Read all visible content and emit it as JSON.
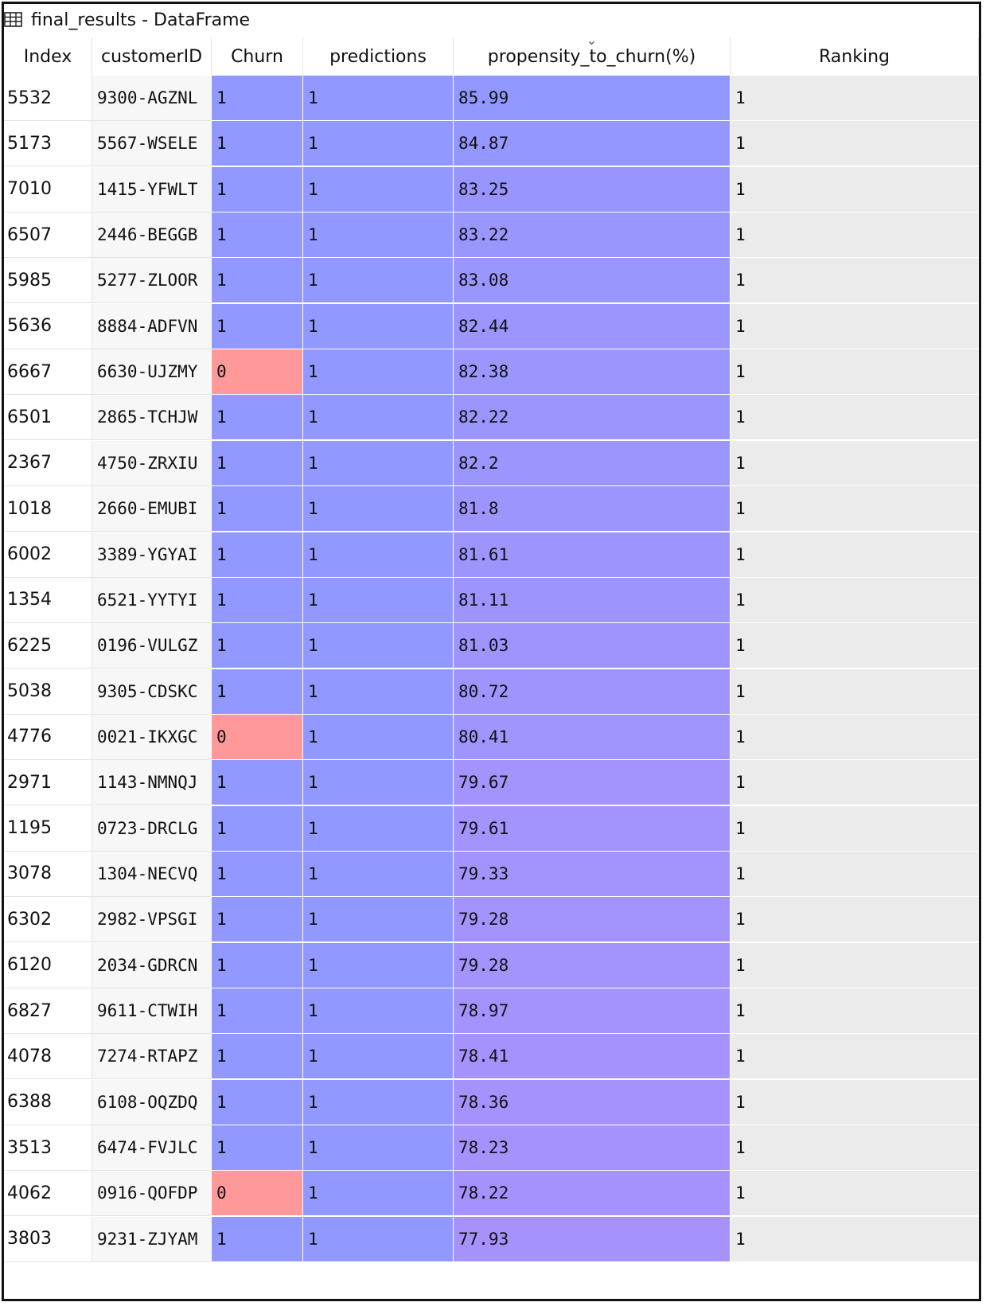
{
  "window": {
    "title": "final_results - DataFrame",
    "icon": "table-icon"
  },
  "columns": [
    {
      "key": "index",
      "label": "Index"
    },
    {
      "key": "customerID",
      "label": "customerID"
    },
    {
      "key": "churn",
      "label": "Churn"
    },
    {
      "key": "predictions",
      "label": "predictions"
    },
    {
      "key": "propensity",
      "label": "propensity_to_churn(%)",
      "sort_indicator": "chevron-down-icon"
    },
    {
      "key": "ranking",
      "label": "Ranking"
    }
  ],
  "colors": {
    "one_value_cell": "#9198ff",
    "zero_value_cell": "#ff9999",
    "propensity_high": "#9198ff",
    "propensity_low": "#a792fc",
    "ranking_bg": "#ebebeb"
  },
  "rows": [
    {
      "index": "5532",
      "customerID": "9300-AGZNL",
      "churn": "1",
      "predictions": "1",
      "propensity": "85.99",
      "ranking": "1"
    },
    {
      "index": "5173",
      "customerID": "5567-WSELE",
      "churn": "1",
      "predictions": "1",
      "propensity": "84.87",
      "ranking": "1"
    },
    {
      "index": "7010",
      "customerID": "1415-YFWLT",
      "churn": "1",
      "predictions": "1",
      "propensity": "83.25",
      "ranking": "1"
    },
    {
      "index": "6507",
      "customerID": "2446-BEGGB",
      "churn": "1",
      "predictions": "1",
      "propensity": "83.22",
      "ranking": "1"
    },
    {
      "index": "5985",
      "customerID": "5277-ZLOOR",
      "churn": "1",
      "predictions": "1",
      "propensity": "83.08",
      "ranking": "1"
    },
    {
      "index": "5636",
      "customerID": "8884-ADFVN",
      "churn": "1",
      "predictions": "1",
      "propensity": "82.44",
      "ranking": "1"
    },
    {
      "index": "6667",
      "customerID": "6630-UJZMY",
      "churn": "0",
      "predictions": "1",
      "propensity": "82.38",
      "ranking": "1"
    },
    {
      "index": "6501",
      "customerID": "2865-TCHJW",
      "churn": "1",
      "predictions": "1",
      "propensity": "82.22",
      "ranking": "1"
    },
    {
      "index": "2367",
      "customerID": "4750-ZRXIU",
      "churn": "1",
      "predictions": "1",
      "propensity": "82.2",
      "ranking": "1"
    },
    {
      "index": "1018",
      "customerID": "2660-EMUBI",
      "churn": "1",
      "predictions": "1",
      "propensity": "81.8",
      "ranking": "1"
    },
    {
      "index": "6002",
      "customerID": "3389-YGYAI",
      "churn": "1",
      "predictions": "1",
      "propensity": "81.61",
      "ranking": "1"
    },
    {
      "index": "1354",
      "customerID": "6521-YYTYI",
      "churn": "1",
      "predictions": "1",
      "propensity": "81.11",
      "ranking": "1"
    },
    {
      "index": "6225",
      "customerID": "0196-VULGZ",
      "churn": "1",
      "predictions": "1",
      "propensity": "81.03",
      "ranking": "1"
    },
    {
      "index": "5038",
      "customerID": "9305-CDSKC",
      "churn": "1",
      "predictions": "1",
      "propensity": "80.72",
      "ranking": "1"
    },
    {
      "index": "4776",
      "customerID": "0021-IKXGC",
      "churn": "0",
      "predictions": "1",
      "propensity": "80.41",
      "ranking": "1"
    },
    {
      "index": "2971",
      "customerID": "1143-NMNQJ",
      "churn": "1",
      "predictions": "1",
      "propensity": "79.67",
      "ranking": "1"
    },
    {
      "index": "1195",
      "customerID": "0723-DRCLG",
      "churn": "1",
      "predictions": "1",
      "propensity": "79.61",
      "ranking": "1"
    },
    {
      "index": "3078",
      "customerID": "1304-NECVQ",
      "churn": "1",
      "predictions": "1",
      "propensity": "79.33",
      "ranking": "1"
    },
    {
      "index": "6302",
      "customerID": "2982-VPSGI",
      "churn": "1",
      "predictions": "1",
      "propensity": "79.28",
      "ranking": "1"
    },
    {
      "index": "6120",
      "customerID": "2034-GDRCN",
      "churn": "1",
      "predictions": "1",
      "propensity": "79.28",
      "ranking": "1"
    },
    {
      "index": "6827",
      "customerID": "9611-CTWIH",
      "churn": "1",
      "predictions": "1",
      "propensity": "78.97",
      "ranking": "1"
    },
    {
      "index": "4078",
      "customerID": "7274-RTAPZ",
      "churn": "1",
      "predictions": "1",
      "propensity": "78.41",
      "ranking": "1"
    },
    {
      "index": "6388",
      "customerID": "6108-OQZDQ",
      "churn": "1",
      "predictions": "1",
      "propensity": "78.36",
      "ranking": "1"
    },
    {
      "index": "3513",
      "customerID": "6474-FVJLC",
      "churn": "1",
      "predictions": "1",
      "propensity": "78.23",
      "ranking": "1"
    },
    {
      "index": "4062",
      "customerID": "0916-QOFDP",
      "churn": "0",
      "predictions": "1",
      "propensity": "78.22",
      "ranking": "1"
    },
    {
      "index": "3803",
      "customerID": "9231-ZJYAM",
      "churn": "1",
      "predictions": "1",
      "propensity": "77.93",
      "ranking": "1"
    }
  ]
}
